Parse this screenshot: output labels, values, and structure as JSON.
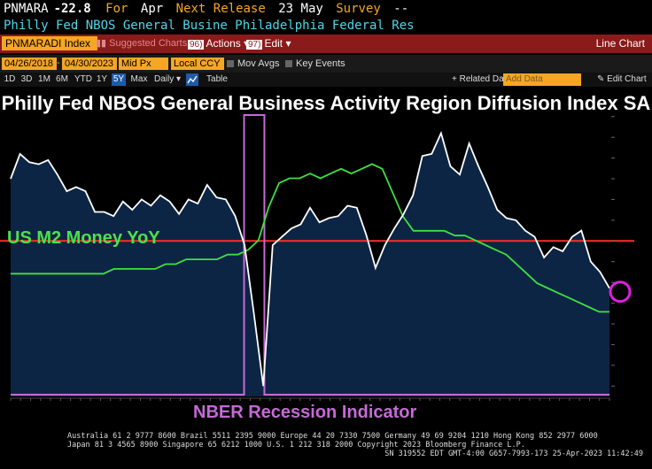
{
  "header": {
    "ticker": "PNMARA",
    "value": "-22.8",
    "for_label": "For",
    "period": "Apr",
    "next_release_label": "Next Release",
    "next_release_value": "23 May",
    "survey_label": "Survey",
    "survey_value": "--",
    "description": "Philly Fed NBOS General Busine Philadelphia Federal Res"
  },
  "toolbar": {
    "ticker_box": "PNMARADI Index",
    "suggested": "Suggested Charts",
    "actions_num": "96)",
    "actions_label": "Actions",
    "edit_num": "97)",
    "edit_label": "Edit",
    "chart_type": "Line Chart"
  },
  "date_row": {
    "start": "04/26/2018",
    "separator": "-",
    "end": "04/30/2023",
    "field": "Mid Px",
    "currency": "Local CCY",
    "mov_avgs": "Mov Avgs",
    "key_events": "Key Events"
  },
  "period_row": {
    "periods": [
      "1D",
      "3D",
      "1M",
      "6M",
      "YTD",
      "1Y",
      "5Y",
      "Max"
    ],
    "active": "5Y",
    "frequency": "Daily",
    "table": "Table",
    "related": "+ Related Dat",
    "add_data": "Add Data",
    "edit_chart": "Edit Chart"
  },
  "colors": {
    "background": "#000000",
    "area_fill": "#0d2545",
    "index_line": "#ffffff",
    "m2_line": "#3ee23e",
    "nber_line": "#c56ad6",
    "zero_line": "#ff2a2a",
    "highlight": "#e01ee0"
  },
  "annotations": {
    "m2_label": "US M2 Money YoY",
    "nber_label": "NBER Recession Indicator"
  },
  "chart_data": {
    "type": "line",
    "title": "Philly Fed NBOS General Business Activity Region Diffusion Index SA",
    "x_range": [
      "2018-04",
      "2023-04"
    ],
    "series": [
      {
        "name": "Philly Fed NBOS General Business Activity Region Diffusion Index SA",
        "axis": "right",
        "values": [
          30,
          42,
          38,
          37,
          39,
          32,
          24,
          26,
          24,
          14,
          14,
          12,
          19,
          15,
          20,
          17,
          22,
          19,
          13,
          20,
          18,
          27,
          21,
          20,
          12,
          -2,
          -35,
          -70,
          -2,
          2,
          6,
          8,
          16,
          9,
          11,
          12,
          17,
          16,
          3,
          -13,
          -2,
          6,
          13,
          22,
          41,
          42,
          52,
          36,
          32,
          47,
          36,
          26,
          15,
          11,
          10,
          5,
          2,
          -8,
          -3,
          -5,
          2,
          5,
          -10,
          -15,
          -22.8
        ],
        "last_value": -22.8
      },
      {
        "name": "US M2 Money YoY",
        "axis": "right",
        "values": [
          4,
          4,
          4,
          4,
          4,
          4,
          4,
          4,
          4,
          4,
          5,
          5,
          5,
          5,
          5,
          6,
          6,
          7,
          7,
          7,
          7,
          8,
          8,
          9,
          11,
          18,
          23,
          24,
          24,
          25,
          24,
          25,
          26,
          25,
          26,
          27,
          26,
          21,
          16,
          13,
          13,
          13,
          13,
          12,
          12,
          11,
          10,
          9,
          8,
          6,
          4,
          2,
          1,
          0,
          -1,
          -2,
          -3,
          -4,
          -4
        ],
        "last_value": -4
      },
      {
        "name": "NBER Recession Indicator",
        "axis": "left",
        "values": [
          0,
          0,
          0,
          0,
          0,
          0,
          0,
          0,
          0,
          0,
          0,
          0,
          0,
          0,
          0,
          0,
          0,
          0,
          0,
          0,
          0,
          0,
          0,
          1,
          1,
          0,
          0,
          0,
          0,
          0,
          0,
          0,
          0,
          0,
          0,
          0,
          0,
          0,
          0,
          0,
          0,
          0,
          0,
          0,
          0,
          0,
          0,
          0,
          0,
          0,
          0,
          0,
          0,
          0,
          0,
          0,
          0,
          0,
          0,
          0
        ],
        "last_value": 0
      }
    ],
    "zero_line": 0
  }
}
